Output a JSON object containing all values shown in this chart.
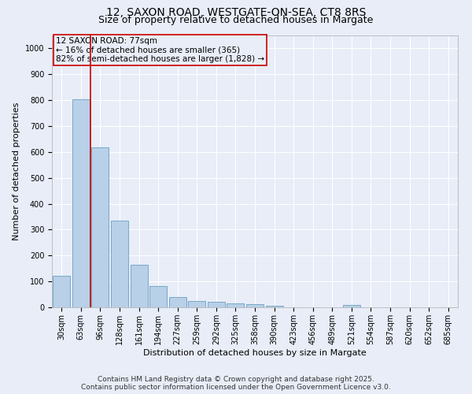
{
  "title_line1": "12, SAXON ROAD, WESTGATE-ON-SEA, CT8 8RS",
  "title_line2": "Size of property relative to detached houses in Margate",
  "xlabel": "Distribution of detached houses by size in Margate",
  "ylabel": "Number of detached properties",
  "categories": [
    "30sqm",
    "63sqm",
    "96sqm",
    "128sqm",
    "161sqm",
    "194sqm",
    "227sqm",
    "259sqm",
    "292sqm",
    "325sqm",
    "358sqm",
    "390sqm",
    "423sqm",
    "456sqm",
    "489sqm",
    "521sqm",
    "554sqm",
    "587sqm",
    "620sqm",
    "652sqm",
    "685sqm"
  ],
  "values": [
    122,
    805,
    618,
    335,
    165,
    82,
    40,
    25,
    22,
    15,
    12,
    5,
    0,
    0,
    0,
    8,
    0,
    0,
    0,
    0,
    0
  ],
  "bar_color": "#b8d0e8",
  "bar_edge_color": "#6a9fc0",
  "vline_x": 1.5,
  "vline_color": "#cc0000",
  "annotation_text": "12 SAXON ROAD: 77sqm\n← 16% of detached houses are smaller (365)\n82% of semi-detached houses are larger (1,828) →",
  "annotation_box_color": "#cc0000",
  "ylim": [
    0,
    1050
  ],
  "yticks": [
    0,
    100,
    200,
    300,
    400,
    500,
    600,
    700,
    800,
    900,
    1000
  ],
  "background_color": "#e8edf8",
  "footer_text": "Contains HM Land Registry data © Crown copyright and database right 2025.\nContains public sector information licensed under the Open Government Licence v3.0.",
  "grid_color": "#ffffff",
  "title_fontsize": 10,
  "subtitle_fontsize": 9,
  "axis_label_fontsize": 8,
  "tick_fontsize": 7,
  "annotation_fontsize": 7.5,
  "footer_fontsize": 6.5
}
